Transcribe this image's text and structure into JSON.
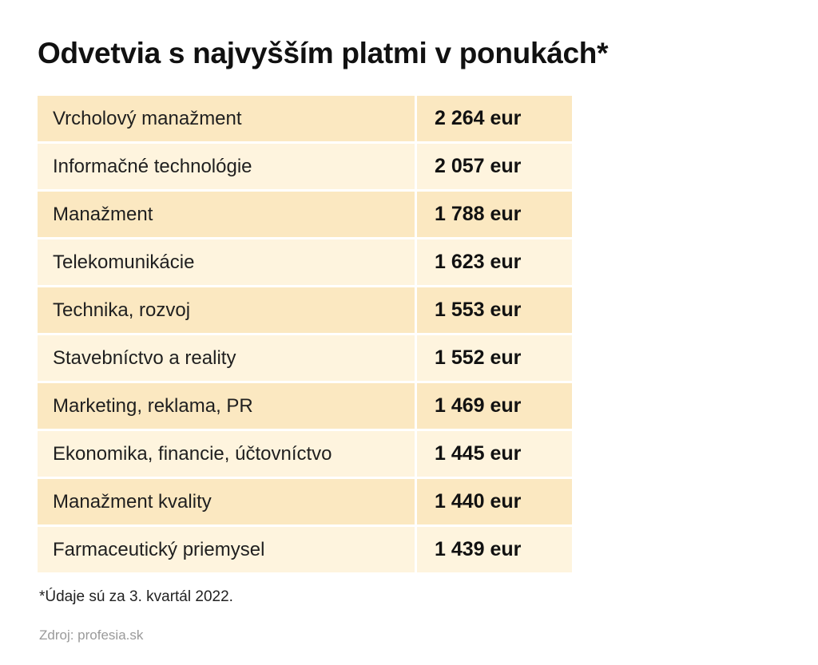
{
  "title": "Odvetvia s najvyšším platmi v ponukách*",
  "footnote": "*Údaje sú za 3. kvartál 2022.",
  "source": "Zdroj: profesia.sk",
  "colors": {
    "row_dark": "#fbe8c1",
    "row_light": "#fef4de",
    "background": "#ffffff"
  },
  "chart_data": {
    "type": "table",
    "title": "Odvetvia s najvyšším platmi v ponukách*",
    "unit": "eur",
    "categories": [
      "Vrcholový manažment",
      "Informačné technológie",
      "Manažment",
      "Telekomunikácie",
      "Technika, rozvoj",
      "Stavebníctvo a reality",
      "Marketing, reklama, PR",
      "Ekonomika, financie, účtovníctvo",
      "Manažment kvality",
      "Farmaceutický priemysel"
    ],
    "values": [
      2264,
      2057,
      1788,
      1623,
      1553,
      1552,
      1469,
      1445,
      1440,
      1439
    ],
    "value_labels": [
      "2 264 eur",
      "2 057 eur",
      "1 788 eur",
      "1 623 eur",
      "1 553 eur",
      "1 552 eur",
      "1 469 eur",
      "1 445 eur",
      "1 440 eur",
      "1 439 eur"
    ]
  }
}
